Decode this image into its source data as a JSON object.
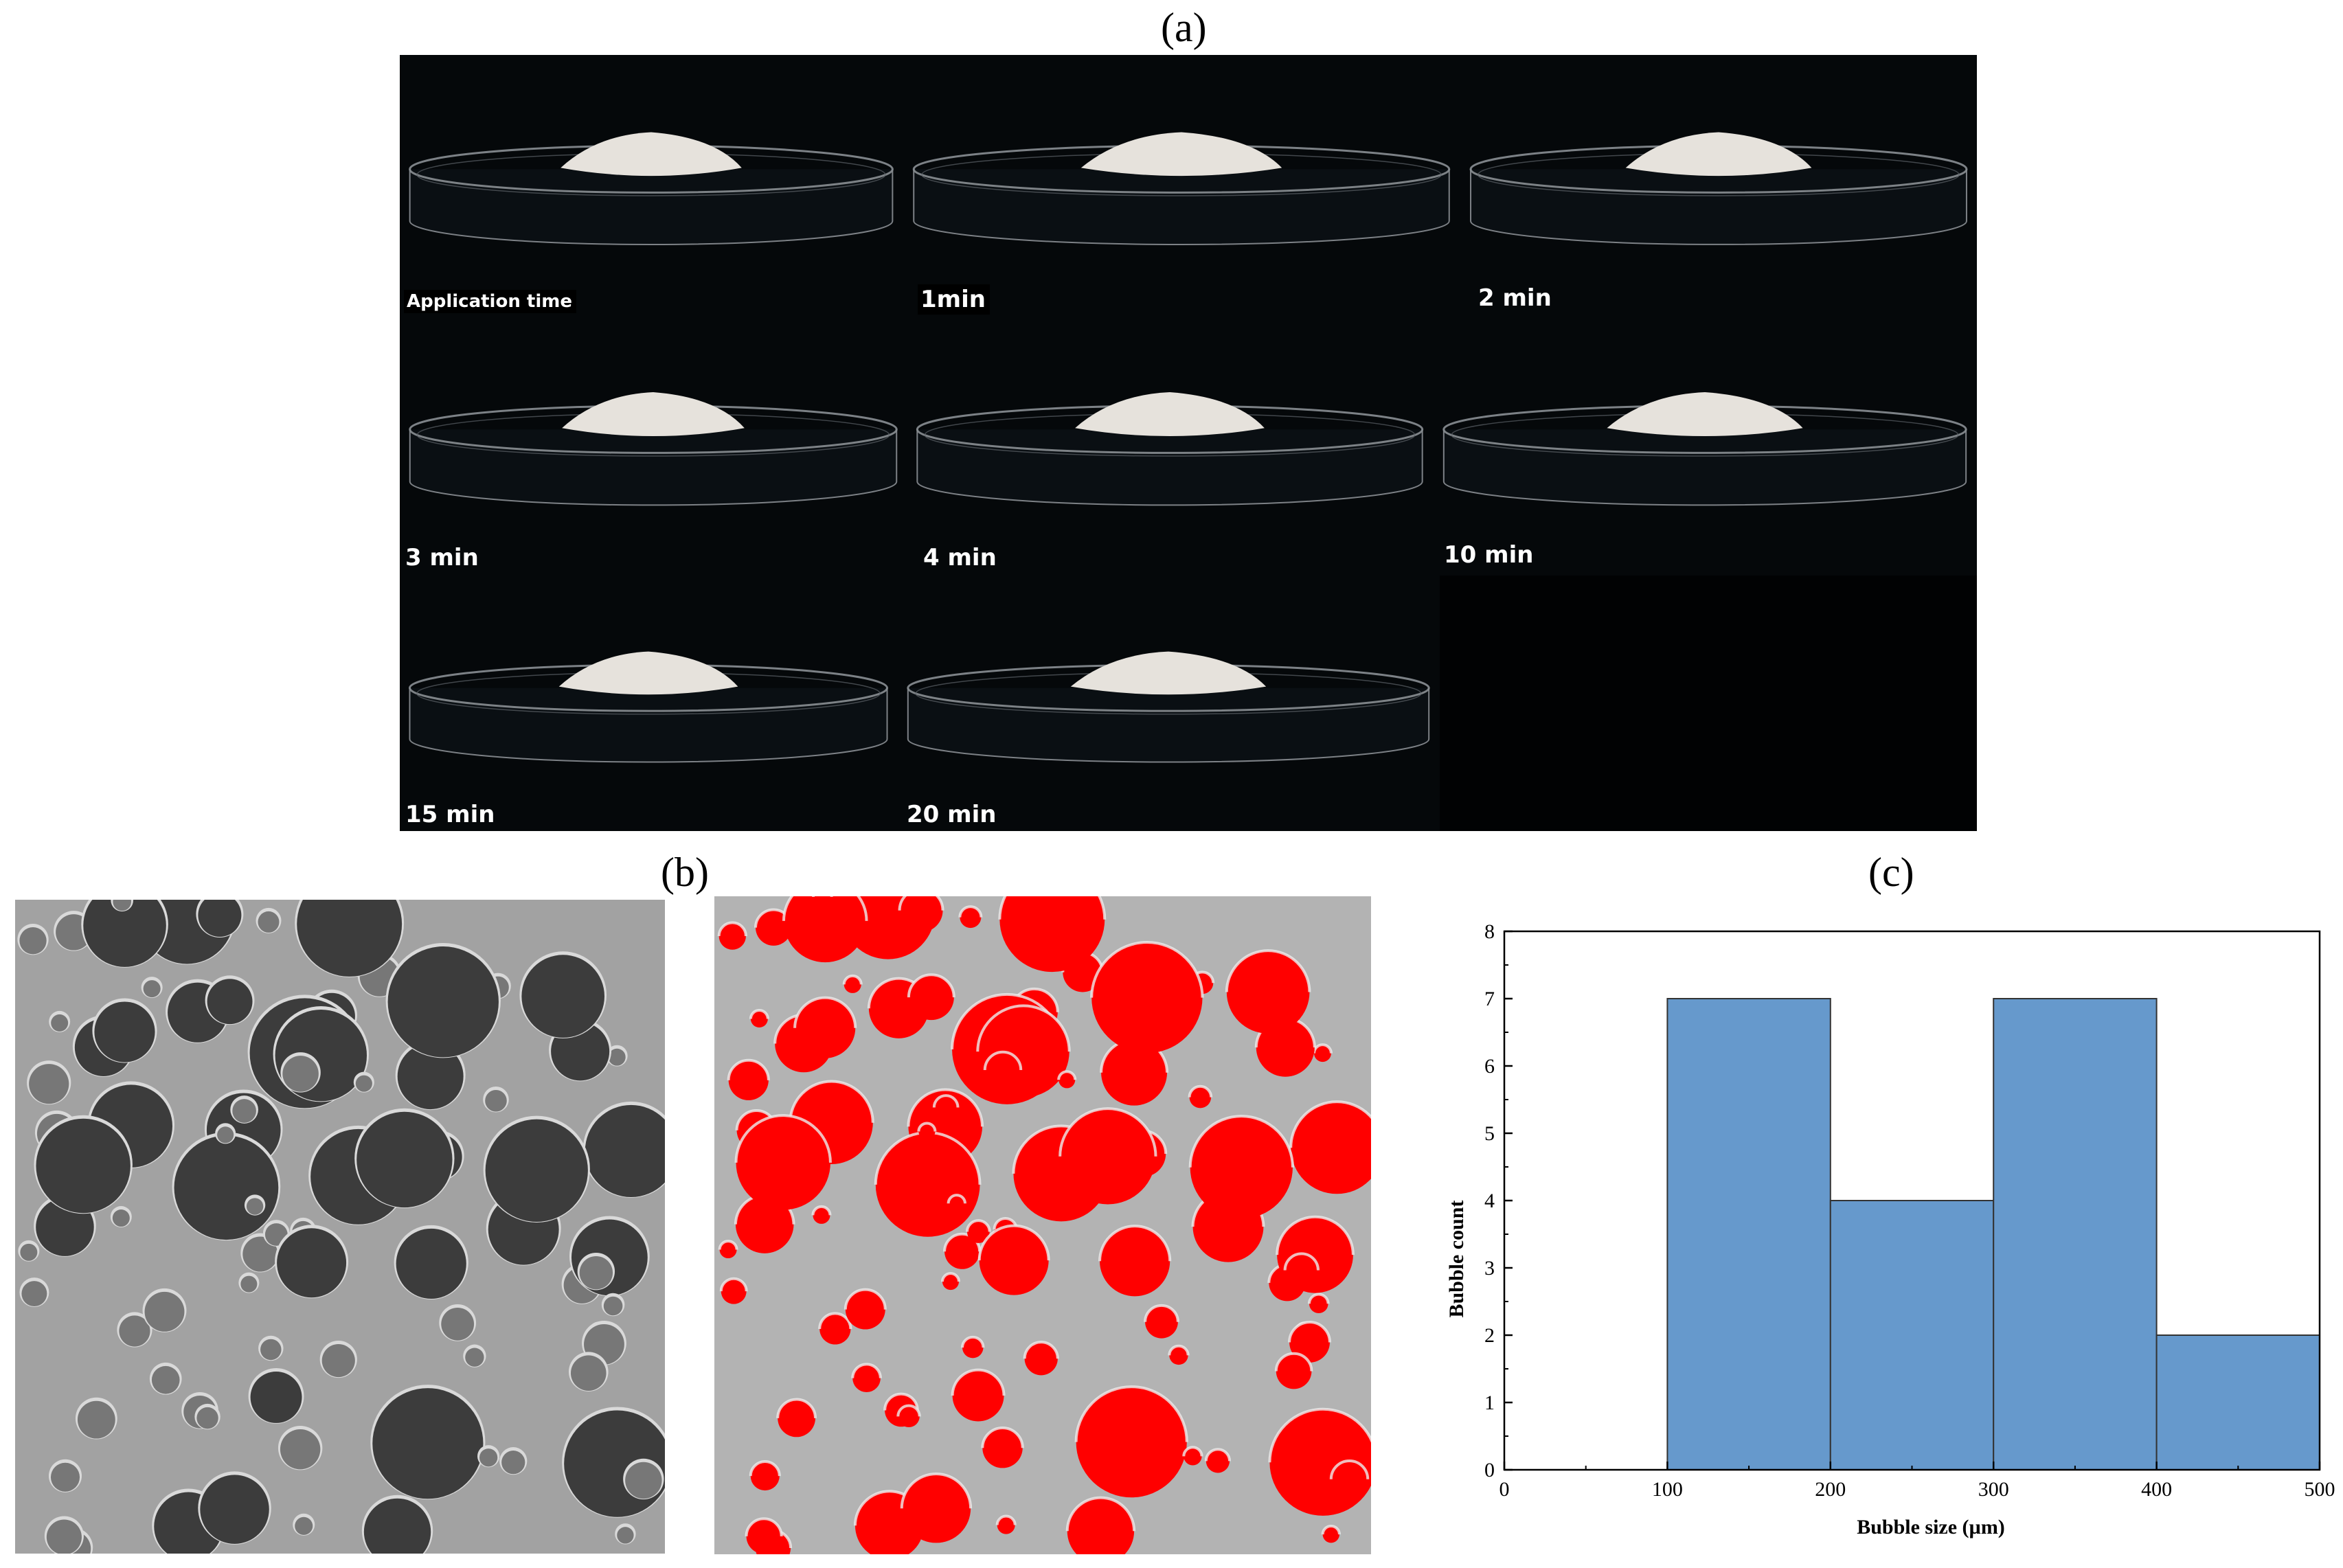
{
  "figure": {
    "panel_labels": {
      "a": "(a)",
      "b": "(b)",
      "c": "(c)"
    }
  },
  "panel_a": {
    "photos": [
      {
        "caption": "Application time"
      },
      {
        "caption": "1min"
      },
      {
        "caption": "2 min"
      },
      {
        "caption": "3 min"
      },
      {
        "caption": "4 min"
      },
      {
        "caption": "10 min"
      },
      {
        "caption": "15 min"
      },
      {
        "caption": "20 min"
      }
    ],
    "colors": {
      "background": "#020406",
      "foam": "#e6e2dc",
      "dish_edge": "#8a8f94"
    }
  },
  "panel_b": {
    "colors": {
      "threshold_highlight": "#ff0000",
      "background_gray": "#9a9a9a"
    }
  },
  "chart_data": {
    "type": "bar",
    "subtype": "histogram",
    "bins": [
      [
        100,
        200
      ],
      [
        200,
        300
      ],
      [
        300,
        400
      ],
      [
        400,
        500
      ]
    ],
    "values": [
      7,
      4,
      7,
      2
    ],
    "xlabel": "Bubble size (µm)",
    "ylabel": "Bubble count",
    "xlim": [
      0,
      500
    ],
    "ylim": [
      0,
      8
    ],
    "xticks": [
      0,
      100,
      200,
      300,
      400,
      500
    ],
    "yticks": [
      0,
      1,
      2,
      3,
      4,
      5,
      6,
      7,
      8
    ],
    "grid": false,
    "bar_color": "#6699cc",
    "edge_color": "#333333"
  }
}
